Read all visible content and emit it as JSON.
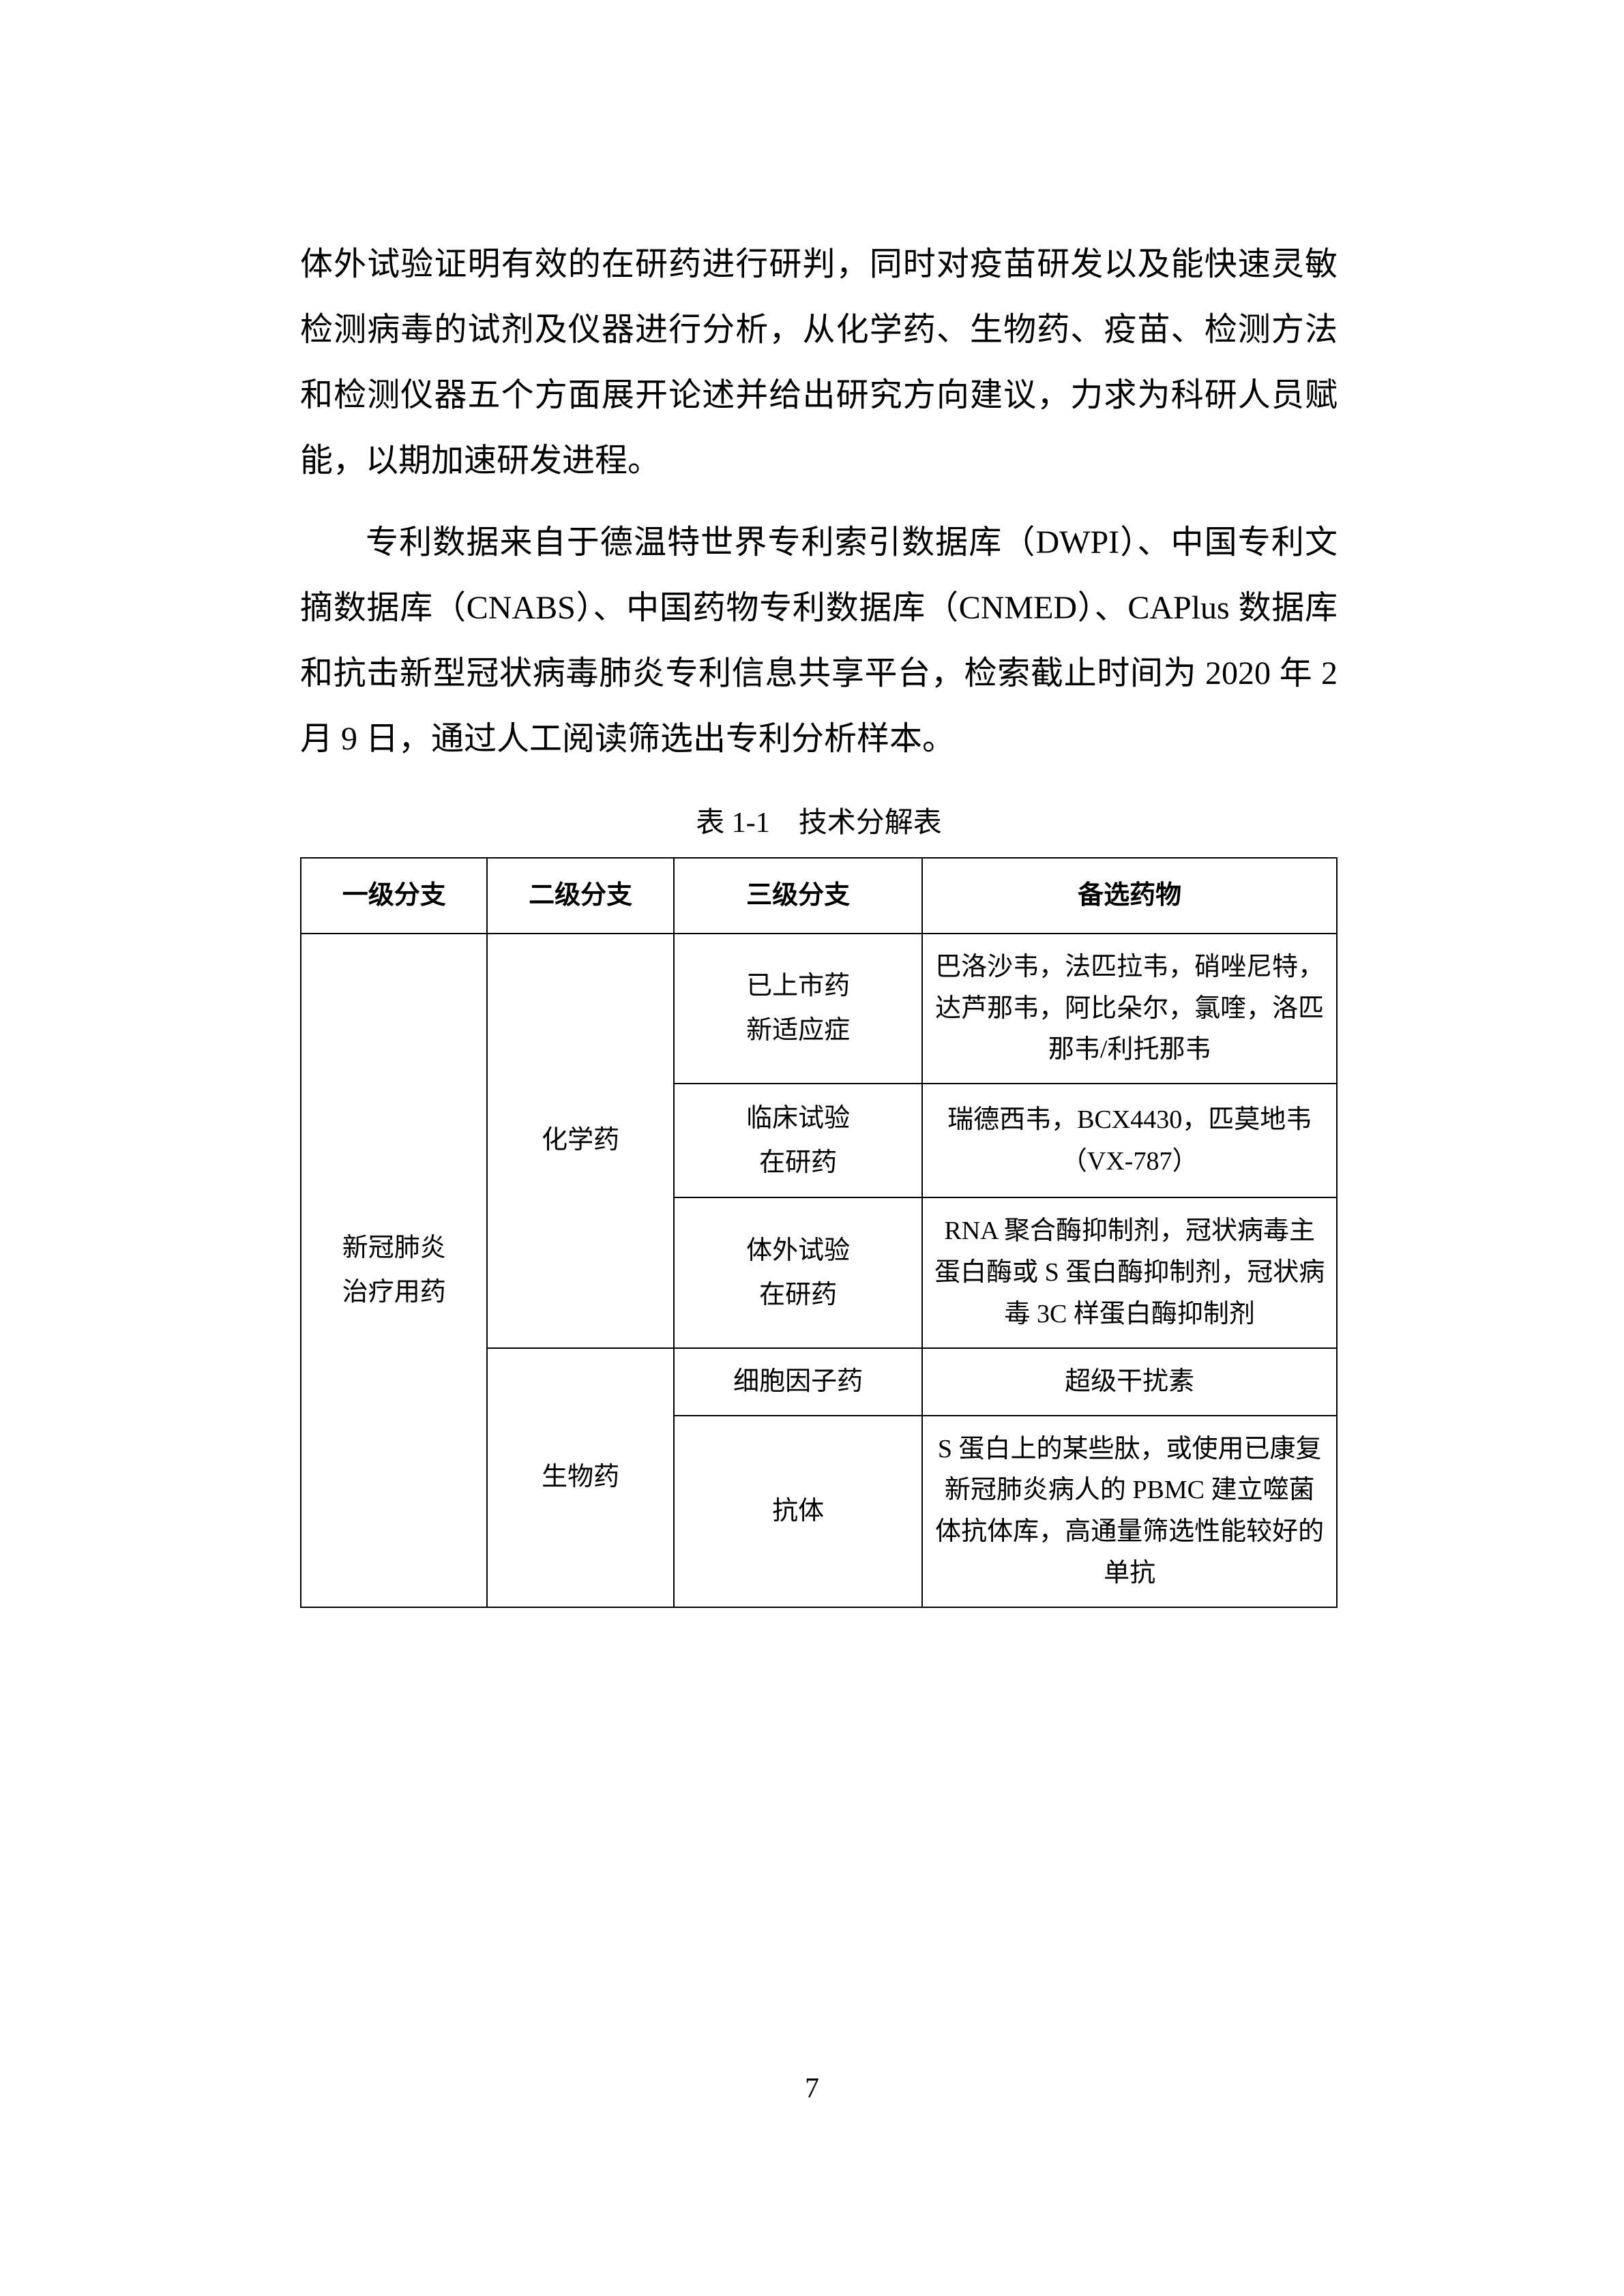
{
  "paragraphs": {
    "p1": "体外试验证明有效的在研药进行研判，同时对疫苗研发以及能快速灵敏检测病毒的试剂及仪器进行分析，从化学药、生物药、疫苗、检测方法和检测仪器五个方面展开论述并给出研究方向建议，力求为科研人员赋能，以期加速研发进程。",
    "p2": "专利数据来自于德温特世界专利索引数据库（DWPI）、中国专利文摘数据库（CNABS）、中国药物专利数据库（CNMED）、CAPlus 数据库和抗击新型冠状病毒肺炎专利信息共享平台，检索截止时间为 2020 年 2 月 9 日，通过人工阅读筛选出专利分析样本。"
  },
  "table": {
    "caption": "表 1-1 技术分解表",
    "headers": {
      "c1": "一级分支",
      "c2": "二级分支",
      "c3": "三级分支",
      "c4": "备选药物"
    },
    "row1": {
      "c1": "新冠肺炎\n治疗用药",
      "c2": "化学药",
      "c3": "已上市药\n新适应症",
      "c4": "巴洛沙韦，法匹拉韦，硝唑尼特，达芦那韦，阿比朵尔，氯喹，洛匹那韦/利托那韦"
    },
    "row2": {
      "c3": "临床试验\n在研药",
      "c4": "瑞德西韦，BCX4430，匹莫地韦（VX-787）"
    },
    "row3": {
      "c3": "体外试验\n在研药",
      "c4": "RNA 聚合酶抑制剂，冠状病毒主蛋白酶或 S 蛋白酶抑制剂，冠状病毒 3C 样蛋白酶抑制剂"
    },
    "row4": {
      "c2": "生物药",
      "c3": "细胞因子药",
      "c4": "超级干扰素"
    },
    "row5": {
      "c3": "抗体",
      "c4": "S 蛋白上的某些肽，或使用已康复新冠肺炎病人的 PBMC 建立噬菌体抗体库，高通量筛选性能较好的单抗"
    }
  },
  "page_number": "7",
  "colors": {
    "text": "#000000",
    "background": "#ffffff",
    "border": "#000000"
  },
  "typography": {
    "body_fontsize": 48,
    "table_fontsize": 38,
    "caption_fontsize": 42,
    "line_height": 2.0
  }
}
